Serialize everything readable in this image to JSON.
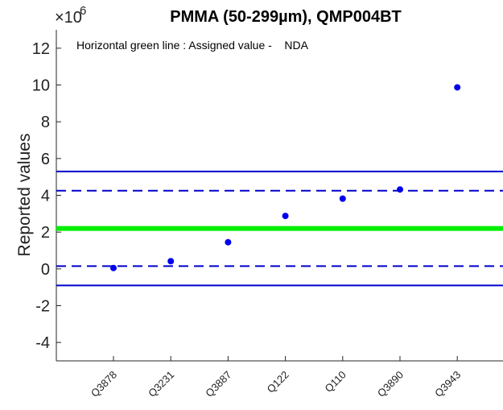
{
  "chart_data": {
    "type": "scatter",
    "title": "PMMA (50-299µm), QMP004BT",
    "ylabel": "Reported values",
    "xlabel": "",
    "exponent_base": "×10",
    "exponent_power": "6",
    "annotation": "Horizontal green line : Assigned value -    NDA",
    "categories": [
      "Q3878",
      "Q3231",
      "Q3887",
      "Q122",
      "Q110",
      "Q3890",
      "Q3943"
    ],
    "values": [
      0.05,
      0.42,
      1.45,
      2.88,
      3.82,
      4.32,
      9.87
    ],
    "ylim": [
      -5,
      13
    ],
    "yticks": [
      -4,
      -2,
      0,
      2,
      4,
      6,
      8,
      10,
      12
    ],
    "ytick_labels": [
      "-4",
      "-2",
      "0",
      "2",
      "4",
      "6",
      "8",
      "10",
      "12"
    ],
    "grid": false,
    "reference_lines": [
      {
        "value": 2.2,
        "color": "#00ee00",
        "style": "solid",
        "role": "assigned"
      },
      {
        "value": 4.25,
        "color": "#0000cc",
        "style": "dashed",
        "role": "upper-inner"
      },
      {
        "value": 0.15,
        "color": "#0000cc",
        "style": "dashed",
        "role": "lower-inner"
      },
      {
        "value": 5.3,
        "color": "#0000cc",
        "style": "solid",
        "role": "upper-outer"
      },
      {
        "value": -0.9,
        "color": "#0000cc",
        "style": "solid",
        "role": "lower-outer"
      }
    ],
    "point_color": "#0000ee"
  }
}
